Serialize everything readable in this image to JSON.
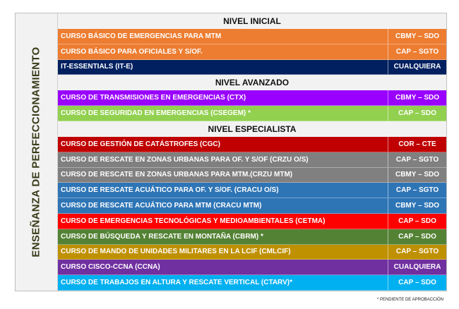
{
  "side_title": "ENSEÑANZA DE PERFECCIONAMIENTO",
  "sections": [
    {
      "title": "NIVEL INICIAL",
      "courses": [
        {
          "name": "CURSO BÁSICO DE EMERGENCIAS PARA MTM",
          "code": "CBMY – SDO",
          "color": "#ed7d31"
        },
        {
          "name": "CURSO BÁSICO PARA OFICIALES Y S/OF.",
          "code": "CAP – SGTO",
          "color": "#ed7d31"
        },
        {
          "name": "IT-ESSENTIALS (IT-E)",
          "code": "CUALQUIERA",
          "color": "#002060"
        }
      ]
    },
    {
      "title": "NIVEL AVANZADO",
      "courses": [
        {
          "name": "CURSO DE TRANSMISIONES EN EMERGENCIAS (CTX)",
          "code": "CBMY – SDO",
          "color": "#9900ff"
        },
        {
          "name": "CURSO DE SEGURIDAD EN EMERGENCIAS (CSEGEM) *",
          "code": "CAP – SDO",
          "color": "#92d050"
        }
      ]
    },
    {
      "title": "NIVEL ESPECIALISTA",
      "courses": [
        {
          "name": "CURSO DE GESTIÓN DE CATÁSTROFES (CGC)",
          "code": "COR – CTE",
          "color": "#c00000"
        },
        {
          "name": "CURSO DE RESCATE EN ZONAS URBANAS PARA OF. Y S/OF (CRZU O/S)",
          "code": "CAP – SGTO",
          "color": "#808080"
        },
        {
          "name": "CURSO DE RESCATE EN ZONAS URBANAS PARA MTM.(CRZU MTM)",
          "code": "CBMY – SDO",
          "color": "#808080"
        },
        {
          "name": "CURSO DE RESCATE ACUÁTICO PARA OF. Y S/OF. (CRACU  O/S)",
          "code": "CAP – SGTO",
          "color": "#2e75b6"
        },
        {
          "name": "CURSO DE RESCATE ACUÁTICO PARA MTM (CRACU  MTM)",
          "code": "CBMY – SDO",
          "color": "#2e75b6"
        },
        {
          "name": "CURSO DE EMERGENCIAS TECNOLÓGICAS Y MEDIOAMBIENTALES (CETMA)",
          "code": "CAP – SDO",
          "color": "#ff0000"
        },
        {
          "name": "CURSO DE BÚSQUEDA Y RESCATE EN MONTAÑA (CBRM) *",
          "code": "CAP – SDO",
          "color": "#548235"
        },
        {
          "name": "CURSO DE MANDO DE UNIDADES MILITARES EN LA LCIF (CMLCIF)",
          "code": "CAP – SGTO",
          "color": "#bf9000"
        },
        {
          "name": "CURSO CISCO-CCNA (CCNA)",
          "code": "CUALQUIERA",
          "color": "#7030a0"
        },
        {
          "name": "CURSO DE TRABAJOS EN ALTURA Y RESCATE VERTICAL  (CTARV)*",
          "code": "CAP – SDO",
          "color": "#00b0f0"
        }
      ]
    }
  ],
  "footnote": "* PENDIENTE DE APROBACCIÓN"
}
